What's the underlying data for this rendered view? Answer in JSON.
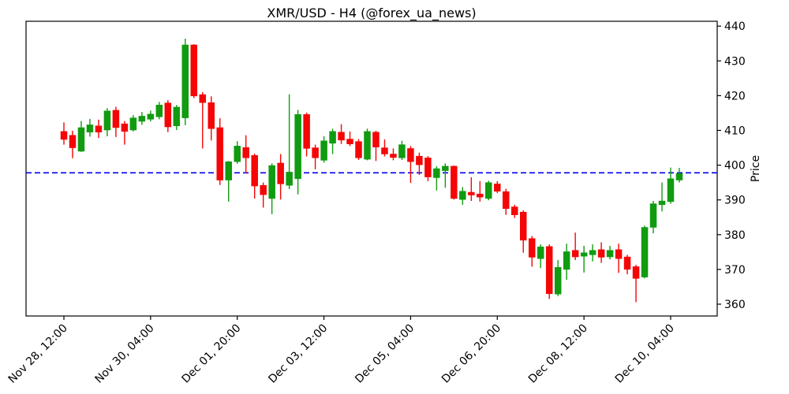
{
  "title": "XMR/USD - H4 (@forex_ua_news)",
  "chart_data": {
    "type": "candlestick",
    "symbol": "XMR/USD",
    "timeframe": "H4",
    "source_handle": "@forex_ua_news",
    "title": "XMR/USD - H4 (@forex_ua_news)",
    "ylabel": "Price",
    "y_axis_side": "right",
    "ylim": [
      356.6,
      441.4
    ],
    "yticks": [
      360,
      370,
      380,
      390,
      400,
      410,
      420,
      430,
      440
    ],
    "xtick_labels": [
      "Nov 28, 12:00",
      "Nov 30, 04:00",
      "Dec 01, 20:00",
      "Dec 03, 12:00",
      "Dec 05, 04:00",
      "Dec 06, 20:00",
      "Dec 08, 12:00",
      "Dec 10, 04:00"
    ],
    "xtick_indices": [
      0,
      10,
      20,
      30,
      40,
      50,
      60,
      70
    ],
    "grid": false,
    "legend": false,
    "hline": {
      "price": 397.8,
      "color": "#0000ee",
      "style": "dashed"
    },
    "colors": {
      "up": "#109b10",
      "down": "#f50505",
      "axis": "#000000",
      "background": "#ffffff"
    },
    "candles": [
      {
        "t": "Nov 28 12:00",
        "o": 409.7,
        "h": 412.3,
        "l": 405.9,
        "c": 407.4
      },
      {
        "t": "Nov 28 16:00",
        "o": 408.6,
        "h": 409.9,
        "l": 402.0,
        "c": 405.0
      },
      {
        "t": "Nov 28 20:00",
        "o": 404.0,
        "h": 412.7,
        "l": 403.8,
        "c": 410.8
      },
      {
        "t": "Nov 29 00:00",
        "o": 409.5,
        "h": 413.3,
        "l": 408.2,
        "c": 411.6
      },
      {
        "t": "Nov 29 04:00",
        "o": 411.3,
        "h": 413.1,
        "l": 407.8,
        "c": 409.5
      },
      {
        "t": "Nov 29 08:00",
        "o": 410.1,
        "h": 416.4,
        "l": 408.3,
        "c": 415.6
      },
      {
        "t": "Nov 29 12:00",
        "o": 415.8,
        "h": 416.8,
        "l": 408.1,
        "c": 410.8
      },
      {
        "t": "Nov 29 16:00",
        "o": 411.9,
        "h": 412.7,
        "l": 405.9,
        "c": 409.7
      },
      {
        "t": "Nov 29 20:00",
        "o": 410.1,
        "h": 414.4,
        "l": 409.7,
        "c": 413.6
      },
      {
        "t": "Nov 30 00:00",
        "o": 412.6,
        "h": 415.3,
        "l": 411.6,
        "c": 414.1
      },
      {
        "t": "Nov 30 04:00",
        "o": 413.2,
        "h": 415.7,
        "l": 412.6,
        "c": 414.7
      },
      {
        "t": "Nov 30 08:00",
        "o": 413.9,
        "h": 418.2,
        "l": 413.2,
        "c": 417.3
      },
      {
        "t": "Nov 30 12:00",
        "o": 417.9,
        "h": 418.7,
        "l": 409.5,
        "c": 411.0
      },
      {
        "t": "Nov 30 16:00",
        "o": 411.3,
        "h": 417.3,
        "l": 410.1,
        "c": 416.7
      },
      {
        "t": "Nov 30 20:00",
        "o": 413.6,
        "h": 436.4,
        "l": 411.5,
        "c": 434.6
      },
      {
        "t": "Dec 01 00:00",
        "o": 434.6,
        "h": 434.8,
        "l": 419.3,
        "c": 419.9
      },
      {
        "t": "Dec 01 04:00",
        "o": 420.3,
        "h": 421.0,
        "l": 404.8,
        "c": 418.0
      },
      {
        "t": "Dec 01 08:00",
        "o": 418.0,
        "h": 419.8,
        "l": 407.1,
        "c": 410.5
      },
      {
        "t": "Dec 01 12:00",
        "o": 410.8,
        "h": 413.5,
        "l": 394.3,
        "c": 395.7
      },
      {
        "t": "Dec 01 16:00",
        "o": 395.7,
        "h": 401.2,
        "l": 389.5,
        "c": 401.0
      },
      {
        "t": "Dec 01 20:00",
        "o": 401.0,
        "h": 406.9,
        "l": 400.4,
        "c": 405.5
      },
      {
        "t": "Dec 02 00:00",
        "o": 405.1,
        "h": 408.6,
        "l": 397.6,
        "c": 402.1
      },
      {
        "t": "Dec 02 04:00",
        "o": 402.8,
        "h": 403.3,
        "l": 390.4,
        "c": 394.0
      },
      {
        "t": "Dec 02 08:00",
        "o": 394.2,
        "h": 395.0,
        "l": 387.8,
        "c": 391.5
      },
      {
        "t": "Dec 02 12:00",
        "o": 390.4,
        "h": 400.5,
        "l": 385.9,
        "c": 399.9
      },
      {
        "t": "Dec 02 16:00",
        "o": 400.6,
        "h": 403.2,
        "l": 390.1,
        "c": 394.6
      },
      {
        "t": "Dec 02 20:00",
        "o": 394.2,
        "h": 420.4,
        "l": 393.1,
        "c": 398.0
      },
      {
        "t": "Dec 03 00:00",
        "o": 396.1,
        "h": 415.9,
        "l": 391.6,
        "c": 414.6
      },
      {
        "t": "Dec 03 04:00",
        "o": 414.6,
        "h": 415.1,
        "l": 402.5,
        "c": 404.8
      },
      {
        "t": "Dec 03 08:00",
        "o": 405.0,
        "h": 405.9,
        "l": 398.8,
        "c": 402.1
      },
      {
        "t": "Dec 03 12:00",
        "o": 401.4,
        "h": 408.3,
        "l": 400.7,
        "c": 407.0
      },
      {
        "t": "Dec 03 16:00",
        "o": 406.3,
        "h": 410.5,
        "l": 403.2,
        "c": 409.7
      },
      {
        "t": "Dec 03 20:00",
        "o": 409.5,
        "h": 411.8,
        "l": 406.1,
        "c": 407.2
      },
      {
        "t": "Dec 04 00:00",
        "o": 407.5,
        "h": 409.7,
        "l": 405.5,
        "c": 406.1
      },
      {
        "t": "Dec 04 04:00",
        "o": 406.8,
        "h": 407.5,
        "l": 401.5,
        "c": 402.1
      },
      {
        "t": "Dec 04 08:00",
        "o": 401.7,
        "h": 410.5,
        "l": 401.4,
        "c": 409.7
      },
      {
        "t": "Dec 04 12:00",
        "o": 409.5,
        "h": 409.9,
        "l": 401.2,
        "c": 405.2
      },
      {
        "t": "Dec 04 16:00",
        "o": 405.0,
        "h": 407.4,
        "l": 402.5,
        "c": 403.2
      },
      {
        "t": "Dec 04 20:00",
        "o": 403.2,
        "h": 404.8,
        "l": 401.4,
        "c": 402.2
      },
      {
        "t": "Dec 05 00:00",
        "o": 402.1,
        "h": 407.0,
        "l": 401.5,
        "c": 405.9
      },
      {
        "t": "Dec 05 04:00",
        "o": 404.8,
        "h": 405.5,
        "l": 394.9,
        "c": 401.0
      },
      {
        "t": "Dec 05 08:00",
        "o": 402.6,
        "h": 403.6,
        "l": 397.2,
        "c": 400.1
      },
      {
        "t": "Dec 05 12:00",
        "o": 402.1,
        "h": 402.6,
        "l": 395.4,
        "c": 396.6
      },
      {
        "t": "Dec 05 16:00",
        "o": 396.4,
        "h": 399.7,
        "l": 392.7,
        "c": 399.0
      },
      {
        "t": "Dec 05 20:00",
        "o": 398.4,
        "h": 400.5,
        "l": 393.5,
        "c": 399.7
      },
      {
        "t": "Dec 06 00:00",
        "o": 399.7,
        "h": 399.9,
        "l": 390.1,
        "c": 390.4
      },
      {
        "t": "Dec 06 04:00",
        "o": 390.1,
        "h": 393.7,
        "l": 388.6,
        "c": 392.5
      },
      {
        "t": "Dec 06 08:00",
        "o": 392.2,
        "h": 396.5,
        "l": 389.7,
        "c": 391.4
      },
      {
        "t": "Dec 06 12:00",
        "o": 391.7,
        "h": 395.4,
        "l": 389.5,
        "c": 390.8
      },
      {
        "t": "Dec 06 16:00",
        "o": 390.4,
        "h": 395.5,
        "l": 389.9,
        "c": 395.0
      },
      {
        "t": "Dec 06 20:00",
        "o": 394.6,
        "h": 395.4,
        "l": 392.0,
        "c": 392.5
      },
      {
        "t": "Dec 07 00:00",
        "o": 392.4,
        "h": 393.2,
        "l": 385.7,
        "c": 387.5
      },
      {
        "t": "Dec 07 04:00",
        "o": 388.0,
        "h": 388.6,
        "l": 384.8,
        "c": 385.7
      },
      {
        "t": "Dec 07 08:00",
        "o": 386.5,
        "h": 387.0,
        "l": 374.8,
        "c": 378.4
      },
      {
        "t": "Dec 07 12:00",
        "o": 378.9,
        "h": 379.6,
        "l": 370.8,
        "c": 373.5
      },
      {
        "t": "Dec 07 16:00",
        "o": 373.1,
        "h": 377.2,
        "l": 370.4,
        "c": 376.5
      },
      {
        "t": "Dec 07 20:00",
        "o": 376.6,
        "h": 377.2,
        "l": 361.5,
        "c": 363.0
      },
      {
        "t": "Dec 08 00:00",
        "o": 362.9,
        "h": 372.7,
        "l": 362.3,
        "c": 370.6
      },
      {
        "t": "Dec 08 04:00",
        "o": 370.0,
        "h": 377.4,
        "l": 367.0,
        "c": 375.1
      },
      {
        "t": "Dec 08 08:00",
        "o": 375.5,
        "h": 380.6,
        "l": 372.7,
        "c": 373.6
      },
      {
        "t": "Dec 08 12:00",
        "o": 373.8,
        "h": 376.8,
        "l": 369.1,
        "c": 374.8
      },
      {
        "t": "Dec 08 16:00",
        "o": 374.2,
        "h": 377.2,
        "l": 372.3,
        "c": 375.5
      },
      {
        "t": "Dec 08 20:00",
        "o": 375.7,
        "h": 377.8,
        "l": 371.9,
        "c": 373.5
      },
      {
        "t": "Dec 09 00:00",
        "o": 373.6,
        "h": 376.8,
        "l": 372.9,
        "c": 375.5
      },
      {
        "t": "Dec 09 04:00",
        "o": 375.7,
        "h": 377.4,
        "l": 369.0,
        "c": 373.1
      },
      {
        "t": "Dec 09 08:00",
        "o": 373.6,
        "h": 374.2,
        "l": 368.6,
        "c": 370.0
      },
      {
        "t": "Dec 09 12:00",
        "o": 370.8,
        "h": 371.3,
        "l": 360.6,
        "c": 367.4
      },
      {
        "t": "Dec 09 16:00",
        "o": 367.8,
        "h": 382.6,
        "l": 367.4,
        "c": 382.1
      },
      {
        "t": "Dec 09 20:00",
        "o": 382.1,
        "h": 389.7,
        "l": 380.4,
        "c": 388.9
      },
      {
        "t": "Dec 10 00:00",
        "o": 388.6,
        "h": 395.0,
        "l": 386.7,
        "c": 389.7
      },
      {
        "t": "Dec 10 04:00",
        "o": 389.5,
        "h": 399.3,
        "l": 388.9,
        "c": 396.1
      },
      {
        "t": "Dec 10 08:00",
        "o": 395.7,
        "h": 399.2,
        "l": 395.0,
        "c": 397.6
      }
    ]
  }
}
